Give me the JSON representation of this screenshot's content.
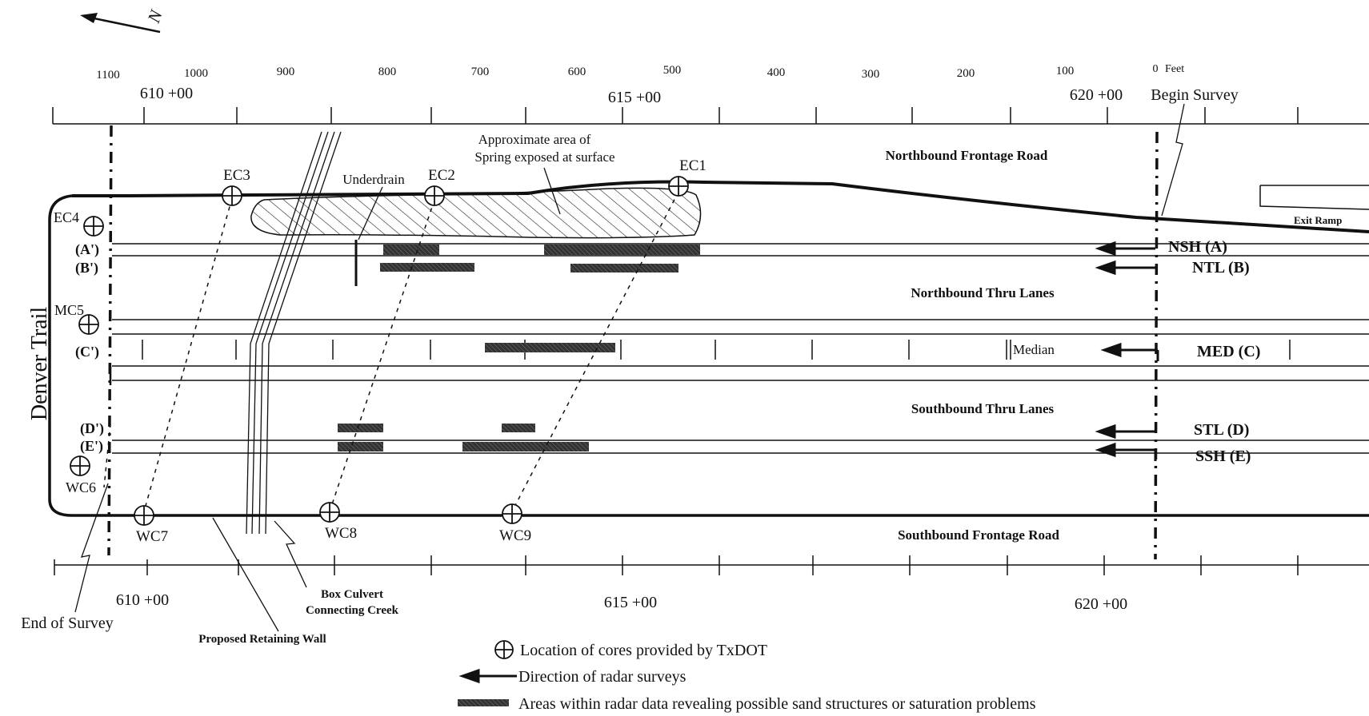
{
  "north_arrow": {
    "label": "N"
  },
  "scale": {
    "ticks": [
      "1100",
      "1000",
      "900",
      "800",
      "700",
      "600",
      "500",
      "400",
      "300",
      "200",
      "100"
    ],
    "zero_label": "0",
    "unit": "Feet"
  },
  "stations_top": [
    "610 +00",
    "615 +00",
    "620 +00"
  ],
  "stations_bottom": [
    "610 +00",
    "615 +00",
    "620 +00"
  ],
  "road_labels": {
    "road_name": "Denver Trail",
    "northbound_frontage": "Northbound Frontage Road",
    "northbound_thru": "Northbound Thru Lanes",
    "median": "Median",
    "southbound_thru": "Southbound Thru Lanes",
    "southbound_frontage": "Southbound Frontage Road",
    "exit_ramp": "Exit Ramp"
  },
  "annotations": {
    "begin_survey": "Begin Survey",
    "end_survey": "End of Survey",
    "underdrain": "Underdrain",
    "spring_line1": "Approximate area of",
    "spring_line2": "Spring exposed at surface",
    "culvert_line1": "Box Culvert",
    "culvert_line2": "Connecting Creek",
    "retaining_wall": "Proposed Retaining Wall"
  },
  "survey_lines": [
    {
      "start": "(A')",
      "end": "NSH (A)"
    },
    {
      "start": "(B')",
      "end": "NTL (B)"
    },
    {
      "start": "(C')",
      "end": "MED (C)"
    },
    {
      "start": "(D')",
      "end": "STL (D)"
    },
    {
      "start": "(E')",
      "end": "SSH (E)"
    }
  ],
  "cores": [
    "EC1",
    "EC2",
    "EC3",
    "EC4",
    "MC5",
    "WC6",
    "WC7",
    "WC8",
    "WC9"
  ],
  "legend": [
    {
      "icon": "core-symbol",
      "text": "Location of cores provided by TxDOT"
    },
    {
      "icon": "arrow-left-icon",
      "text": "Direction of radar surveys"
    },
    {
      "icon": "hatched-bar-icon",
      "text": "Areas within radar data revealing possible sand structures or saturation problems"
    }
  ]
}
